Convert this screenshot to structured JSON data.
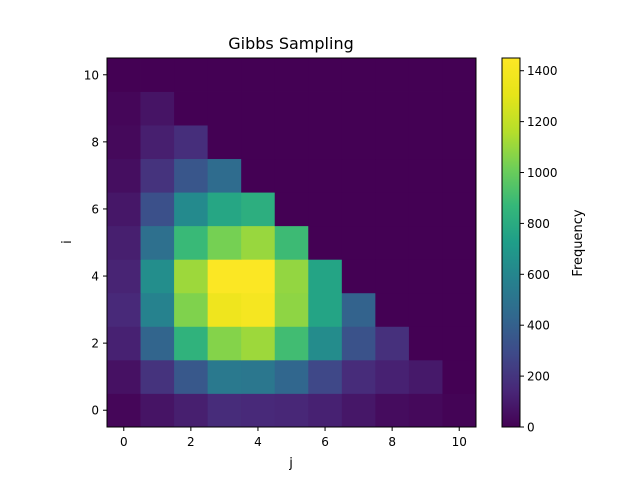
{
  "chart_data": {
    "type": "heatmap",
    "title": "Gibbs Sampling",
    "xlabel": "j",
    "ylabel": "i",
    "colorbar_label": "Frequency",
    "colormap": "viridis",
    "x": [
      0,
      1,
      2,
      3,
      4,
      5,
      6,
      7,
      8,
      9,
      10
    ],
    "y": [
      0,
      1,
      2,
      3,
      4,
      5,
      6,
      7,
      8,
      9,
      10
    ],
    "xticks": [
      0,
      2,
      4,
      6,
      8,
      10
    ],
    "yticks": [
      0,
      2,
      4,
      6,
      8,
      10
    ],
    "colorbar_ticks": [
      0,
      200,
      400,
      600,
      800,
      1000,
      1200,
      1400
    ],
    "vmin": 0,
    "vmax": 1450,
    "z": [
      [
        20,
        70,
        110,
        160,
        150,
        140,
        120,
        80,
        40,
        30,
        10
      ],
      [
        60,
        190,
        360,
        530,
        520,
        430,
        280,
        160,
        120,
        90,
        0
      ],
      [
        120,
        420,
        840,
        1060,
        1110,
        900,
        630,
        330,
        180,
        0,
        0
      ],
      [
        150,
        580,
        1050,
        1360,
        1400,
        1080,
        760,
        410,
        0,
        0,
        0
      ],
      [
        130,
        640,
        1110,
        1440,
        1440,
        1090,
        760,
        0,
        0,
        0,
        0
      ],
      [
        110,
        480,
        880,
        1030,
        1100,
        890,
        0,
        0,
        0,
        0,
        0
      ],
      [
        80,
        320,
        620,
        770,
        820,
        0,
        0,
        0,
        0,
        0,
        0
      ],
      [
        50,
        190,
        350,
        460,
        0,
        0,
        0,
        0,
        0,
        0,
        0
      ],
      [
        30,
        110,
        170,
        0,
        0,
        0,
        0,
        0,
        0,
        0,
        0
      ],
      [
        20,
        70,
        0,
        0,
        0,
        0,
        0,
        0,
        0,
        0,
        0
      ],
      [
        0,
        0,
        0,
        0,
        0,
        0,
        0,
        0,
        0,
        0,
        0
      ]
    ]
  }
}
